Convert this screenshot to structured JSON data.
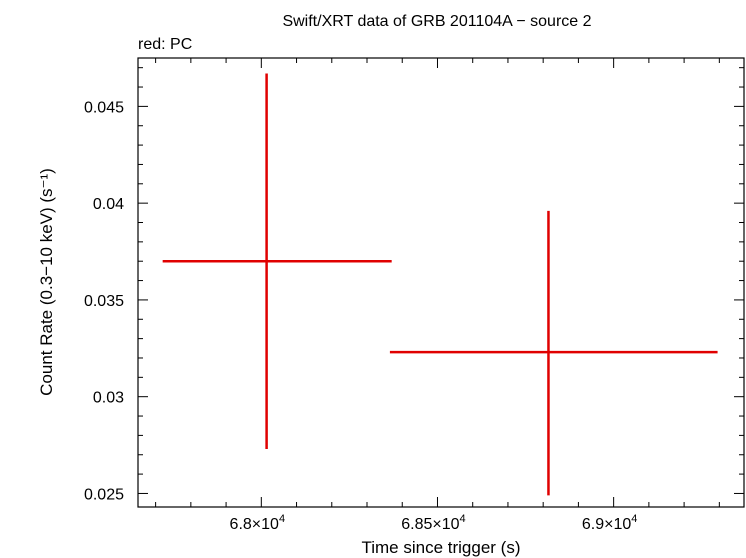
{
  "chart_data": {
    "type": "scatter",
    "title": "Swift/XRT data of GRB 201104A − source 2",
    "subtitle": "red: PC",
    "xlabel": "Time since trigger (s)",
    "ylabel": "Count Rate (0.3−10 keV) (s⁻¹)",
    "xlim": [
      67650,
      69370
    ],
    "ylim": [
      0.0243,
      0.0475
    ],
    "x_ticks": [
      {
        "value": 68000,
        "mantissa": "6.8",
        "exponent": "4"
      },
      {
        "value": 68500,
        "mantissa": "6.85",
        "exponent": "4"
      },
      {
        "value": 69000,
        "mantissa": "6.9",
        "exponent": "4"
      }
    ],
    "y_ticks": [
      {
        "value": 0.025,
        "label": "0.025"
      },
      {
        "value": 0.03,
        "label": "0.03"
      },
      {
        "value": 0.035,
        "label": "0.035"
      },
      {
        "value": 0.04,
        "label": "0.04"
      },
      {
        "value": 0.045,
        "label": "0.045"
      }
    ],
    "grid": false,
    "series": [
      {
        "name": "PC",
        "color": "#e00000",
        "points": [
          {
            "x": 68015,
            "x_low": 67720,
            "x_high": 68370,
            "y": 0.037,
            "y_low": 0.0273,
            "y_high": 0.0467
          },
          {
            "x": 68815,
            "x_low": 68365,
            "x_high": 69295,
            "y": 0.0323,
            "y_low": 0.0249,
            "y_high": 0.0396
          }
        ]
      }
    ]
  }
}
